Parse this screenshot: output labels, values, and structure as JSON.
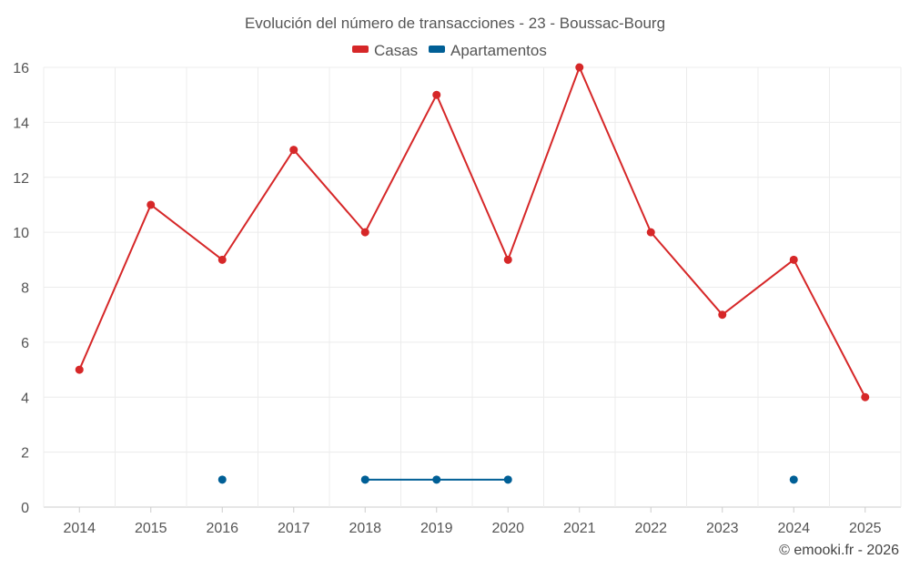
{
  "chart_data": {
    "type": "line",
    "title": "Evolución del número de transacciones - 23 - Boussac-Bourg",
    "categories": [
      "2014",
      "2015",
      "2016",
      "2017",
      "2018",
      "2019",
      "2020",
      "2021",
      "2022",
      "2023",
      "2024",
      "2025"
    ],
    "series": [
      {
        "name": "Casas",
        "color": "#d62728",
        "values": [
          5,
          11,
          9,
          13,
          10,
          15,
          9,
          16,
          10,
          7,
          9,
          4
        ]
      },
      {
        "name": "Apartamentos",
        "color": "#005f96",
        "values": [
          null,
          null,
          1,
          null,
          1,
          1,
          1,
          null,
          null,
          null,
          1,
          null
        ]
      }
    ],
    "ylim": [
      0,
      16
    ],
    "yticks": [
      0,
      2,
      4,
      6,
      8,
      10,
      12,
      14,
      16
    ],
    "xlabel": "",
    "ylabel": "",
    "grid": true,
    "legend": "top-center"
  },
  "credit": "© emooki.fr - 2026"
}
